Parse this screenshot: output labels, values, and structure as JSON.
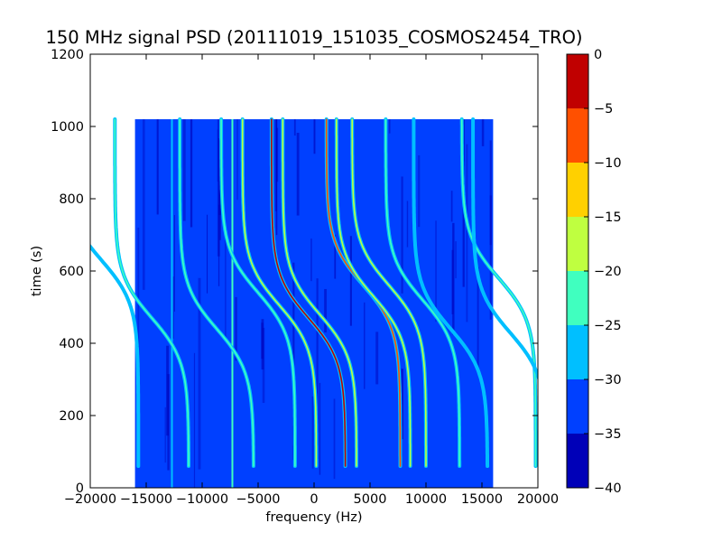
{
  "chart_data": {
    "type": "heatmap",
    "title": "150 MHz signal PSD (20111019_151035_COSMOS2454_TRO)",
    "xlabel": "frequency (Hz)",
    "ylabel": "time (s)",
    "xlim": [
      -20000,
      20000
    ],
    "ylim": [
      0,
      1200
    ],
    "x_ticks": [
      -20000,
      -15000,
      -10000,
      -5000,
      0,
      5000,
      10000,
      15000,
      20000
    ],
    "y_ticks": [
      0,
      200,
      400,
      600,
      800,
      1000
    ],
    "data_extent": {
      "x": [
        -16000,
        16000
      ],
      "y": [
        0,
        1020
      ]
    },
    "background_level": -32,
    "colorbar": {
      "levels": [
        -40,
        -35,
        -30,
        -25,
        -20,
        -15,
        -10,
        -5,
        0
      ],
      "colors": [
        "#0000b8",
        "#0040ff",
        "#00bfff",
        "#40ffbf",
        "#bfff40",
        "#ffd000",
        "#ff5000",
        "#c00000"
      ]
    },
    "vertical_lines": [
      {
        "x": -12700,
        "level": -27
      },
      {
        "x": -7300,
        "level": -25
      }
    ],
    "doppler_tracks": [
      {
        "center": -14500,
        "amplitude": 3300,
        "t0": 470,
        "peak_level": -24
      },
      {
        "center": -8700,
        "amplitude": 3300,
        "t0": 440,
        "peak_level": -25
      },
      {
        "center": -5000,
        "amplitude": 3300,
        "t0": 540,
        "peak_level": -24
      },
      {
        "center": -3100,
        "amplitude": 3300,
        "t0": 505,
        "peak_level": -20
      },
      {
        "center": -500,
        "amplitude": 3300,
        "t0": 470,
        "peak_level": -5
      },
      {
        "center": 500,
        "amplitude": 3300,
        "t0": 480,
        "peak_level": -17
      },
      {
        "center": 4400,
        "amplitude": 3300,
        "t0": 560,
        "peak_level": -10
      },
      {
        "center": 5300,
        "amplitude": 3300,
        "t0": 530,
        "peak_level": -17
      },
      {
        "center": 6700,
        "amplitude": 3300,
        "t0": 560,
        "peak_level": -20
      },
      {
        "center": 9700,
        "amplitude": 3300,
        "t0": 520,
        "peak_level": -24
      },
      {
        "center": 12200,
        "amplitude": 3300,
        "t0": 440,
        "peak_level": -26
      },
      {
        "center": 16500,
        "amplitude": 3300,
        "t0": 580,
        "peak_level": -24
      },
      {
        "center": -19000,
        "amplitude": 3300,
        "t0": 630,
        "peak_level": -26
      },
      {
        "center": 17500,
        "amplitude": 3300,
        "t0": 430,
        "peak_level": -27
      }
    ]
  }
}
